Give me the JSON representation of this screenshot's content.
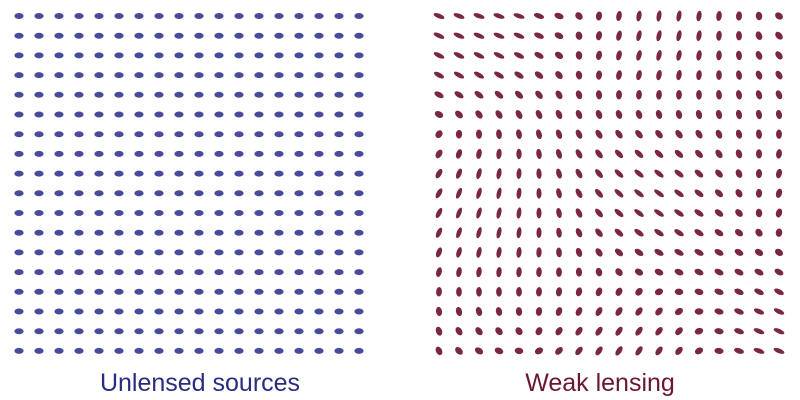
{
  "panels": [
    {
      "id": "unlensed",
      "caption": "Unlensed sources",
      "caption_color": "#2b2b7f",
      "ellipse_color": "#4a4a9c",
      "distortion": "none"
    },
    {
      "id": "weak-lensing",
      "caption": "Weak lensing",
      "caption_color": "#6b1733",
      "ellipse_color": "#7a2645",
      "distortion": "weak-shear"
    }
  ],
  "grid": {
    "columns": 18,
    "rows": 18
  }
}
